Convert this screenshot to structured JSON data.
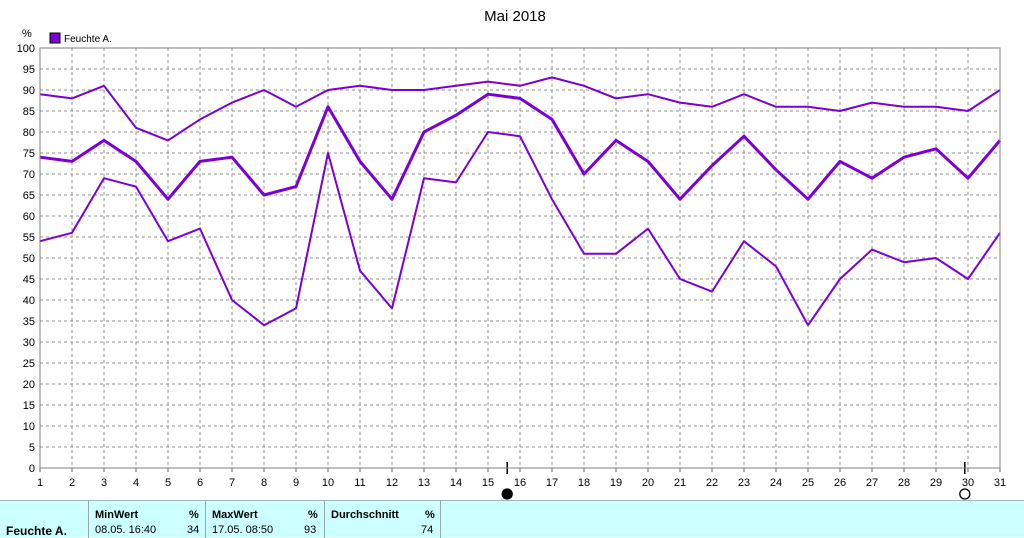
{
  "chart_data": {
    "type": "line",
    "title": "Mai 2018",
    "ylabel": "%",
    "ylim": [
      0,
      100
    ],
    "yticks": [
      0,
      5,
      10,
      15,
      20,
      25,
      30,
      35,
      40,
      45,
      50,
      55,
      60,
      65,
      70,
      75,
      80,
      85,
      90,
      95,
      100
    ],
    "x": [
      1,
      2,
      3,
      4,
      5,
      6,
      7,
      8,
      9,
      10,
      11,
      12,
      13,
      14,
      15,
      16,
      17,
      18,
      19,
      20,
      21,
      22,
      23,
      24,
      25,
      26,
      27,
      28,
      29,
      30,
      31
    ],
    "legend": {
      "label": "Feuchte A.",
      "color": "#7b00d6",
      "placement": "top-left"
    },
    "grid": true,
    "moon_phases": [
      {
        "x": 15.6,
        "phase": "full"
      },
      {
        "x": 29.9,
        "phase": "new"
      }
    ],
    "series": [
      {
        "role": "max",
        "color": "#7b00d6",
        "width": 2,
        "values": [
          89,
          88,
          91,
          81,
          78,
          83,
          87,
          90,
          86,
          90,
          91,
          90,
          90,
          91,
          92,
          91,
          93,
          91,
          88,
          89,
          87,
          86,
          89,
          86,
          86,
          85,
          87,
          86,
          86,
          85,
          90
        ]
      },
      {
        "role": "avg",
        "color": "#7b00d6",
        "width": 3,
        "values": [
          74,
          73,
          78,
          73,
          64,
          73,
          74,
          65,
          67,
          86,
          73,
          64,
          80,
          84,
          89,
          88,
          83,
          70,
          78,
          73,
          64,
          72,
          79,
          71,
          64,
          73,
          69,
          74,
          76,
          69,
          78
        ]
      },
      {
        "role": "min",
        "color": "#7b00d6",
        "width": 2,
        "values": [
          54,
          56,
          69,
          67,
          54,
          57,
          40,
          34,
          38,
          75,
          47,
          38,
          69,
          68,
          80,
          79,
          64,
          51,
          51,
          57,
          45,
          42,
          54,
          48,
          34,
          45,
          52,
          49,
          50,
          45,
          56
        ]
      }
    ]
  },
  "stats": {
    "row_label": "Feuchte A.",
    "min": {
      "header": "MinWert",
      "unit": "%",
      "time": "08.05.  16:40",
      "value": "34"
    },
    "max": {
      "header": "MaxWert",
      "unit": "%",
      "time": "17.05.  08:50",
      "value": "93"
    },
    "avg": {
      "header": "Durchschnitt",
      "unit": "%",
      "value": "74"
    }
  }
}
